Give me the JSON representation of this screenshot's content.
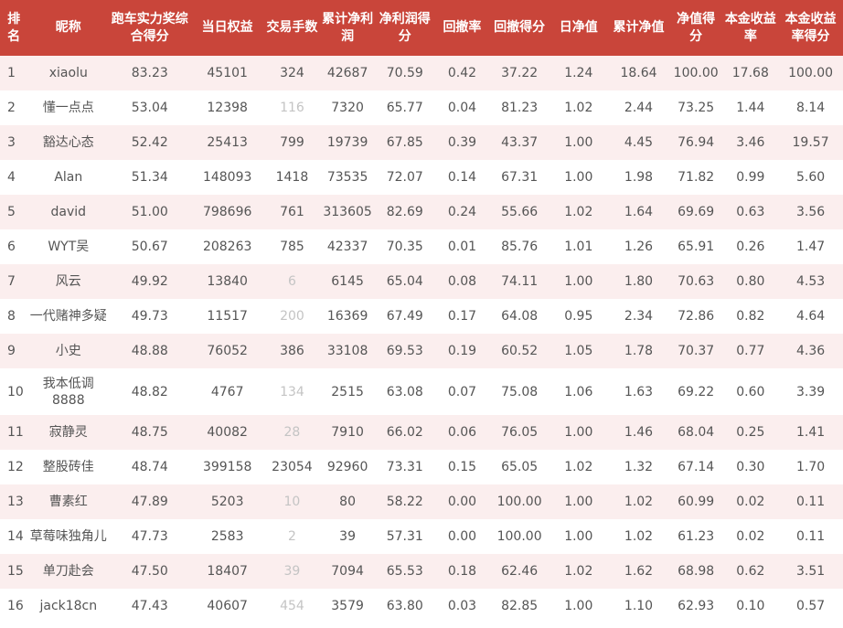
{
  "columns": [
    {
      "key": "rank",
      "label": "排名"
    },
    {
      "key": "nickname",
      "label": "昵称"
    },
    {
      "key": "score",
      "label": "跑车实力奖综合得分"
    },
    {
      "key": "equity",
      "label": "当日权益"
    },
    {
      "key": "trades",
      "label": "交易手数"
    },
    {
      "key": "net_profit",
      "label": "累计净利润"
    },
    {
      "key": "profit_score",
      "label": "净利润得分"
    },
    {
      "key": "drawdown",
      "label": "回撤率"
    },
    {
      "key": "drawdown_score",
      "label": "回撤得分"
    },
    {
      "key": "daily_nav",
      "label": "日净值"
    },
    {
      "key": "cum_nav",
      "label": "累计净值"
    },
    {
      "key": "nav_score",
      "label": "净值得分"
    },
    {
      "key": "return_rate",
      "label": "本金收益率"
    },
    {
      "key": "return_score",
      "label": "本金收益率得分"
    }
  ],
  "rows": [
    {
      "rank": "1",
      "nickname": "xiaolu",
      "score": "83.23",
      "equity": "45101",
      "trades": "324",
      "net_profit": "42687",
      "profit_score": "70.59",
      "drawdown": "0.42",
      "drawdown_score": "37.22",
      "daily_nav": "1.24",
      "cum_nav": "18.64",
      "nav_score": "100.00",
      "return_rate": "17.68",
      "return_score": "100.00",
      "trades_faded": false
    },
    {
      "rank": "2",
      "nickname": "懂一点点",
      "score": "53.04",
      "equity": "12398",
      "trades": "116",
      "net_profit": "7320",
      "profit_score": "65.77",
      "drawdown": "0.04",
      "drawdown_score": "81.23",
      "daily_nav": "1.02",
      "cum_nav": "2.44",
      "nav_score": "73.25",
      "return_rate": "1.44",
      "return_score": "8.14",
      "trades_faded": true
    },
    {
      "rank": "3",
      "nickname": "豁达心态",
      "score": "52.42",
      "equity": "25413",
      "trades": "799",
      "net_profit": "19739",
      "profit_score": "67.85",
      "drawdown": "0.39",
      "drawdown_score": "43.37",
      "daily_nav": "1.00",
      "cum_nav": "4.45",
      "nav_score": "76.94",
      "return_rate": "3.46",
      "return_score": "19.57",
      "trades_faded": false
    },
    {
      "rank": "4",
      "nickname": "Alan",
      "score": "51.34",
      "equity": "148093",
      "trades": "1418",
      "net_profit": "73535",
      "profit_score": "72.07",
      "drawdown": "0.14",
      "drawdown_score": "67.31",
      "daily_nav": "1.00",
      "cum_nav": "1.98",
      "nav_score": "71.82",
      "return_rate": "0.99",
      "return_score": "5.60",
      "trades_faded": false
    },
    {
      "rank": "5",
      "nickname": "david",
      "score": "51.00",
      "equity": "798696",
      "trades": "761",
      "net_profit": "313605",
      "profit_score": "82.69",
      "drawdown": "0.24",
      "drawdown_score": "55.66",
      "daily_nav": "1.02",
      "cum_nav": "1.64",
      "nav_score": "69.69",
      "return_rate": "0.63",
      "return_score": "3.56",
      "trades_faded": false
    },
    {
      "rank": "6",
      "nickname": "WYT吴",
      "score": "50.67",
      "equity": "208263",
      "trades": "785",
      "net_profit": "42337",
      "profit_score": "70.35",
      "drawdown": "0.01",
      "drawdown_score": "85.76",
      "daily_nav": "1.01",
      "cum_nav": "1.26",
      "nav_score": "65.91",
      "return_rate": "0.26",
      "return_score": "1.47",
      "trades_faded": false
    },
    {
      "rank": "7",
      "nickname": "风云",
      "score": "49.92",
      "equity": "13840",
      "trades": "6",
      "net_profit": "6145",
      "profit_score": "65.04",
      "drawdown": "0.08",
      "drawdown_score": "74.11",
      "daily_nav": "1.00",
      "cum_nav": "1.80",
      "nav_score": "70.63",
      "return_rate": "0.80",
      "return_score": "4.53",
      "trades_faded": true
    },
    {
      "rank": "8",
      "nickname": "一代赌神多疑",
      "score": "49.73",
      "equity": "11517",
      "trades": "200",
      "net_profit": "16369",
      "profit_score": "67.49",
      "drawdown": "0.17",
      "drawdown_score": "64.08",
      "daily_nav": "0.95",
      "cum_nav": "2.34",
      "nav_score": "72.86",
      "return_rate": "0.82",
      "return_score": "4.64",
      "trades_faded": true
    },
    {
      "rank": "9",
      "nickname": "小史",
      "score": "48.88",
      "equity": "76052",
      "trades": "386",
      "net_profit": "33108",
      "profit_score": "69.53",
      "drawdown": "0.19",
      "drawdown_score": "60.52",
      "daily_nav": "1.05",
      "cum_nav": "1.78",
      "nav_score": "70.37",
      "return_rate": "0.77",
      "return_score": "4.36",
      "trades_faded": false
    },
    {
      "rank": "10",
      "nickname": "我本低调8888",
      "score": "48.82",
      "equity": "4767",
      "trades": "134",
      "net_profit": "2515",
      "profit_score": "63.08",
      "drawdown": "0.07",
      "drawdown_score": "75.08",
      "daily_nav": "1.06",
      "cum_nav": "1.63",
      "nav_score": "69.22",
      "return_rate": "0.60",
      "return_score": "3.39",
      "trades_faded": true
    },
    {
      "rank": "11",
      "nickname": "寂静灵",
      "score": "48.75",
      "equity": "40082",
      "trades": "28",
      "net_profit": "7910",
      "profit_score": "66.02",
      "drawdown": "0.06",
      "drawdown_score": "76.05",
      "daily_nav": "1.00",
      "cum_nav": "1.46",
      "nav_score": "68.04",
      "return_rate": "0.25",
      "return_score": "1.41",
      "trades_faded": true
    },
    {
      "rank": "12",
      "nickname": "整股砖佳",
      "score": "48.74",
      "equity": "399158",
      "trades": "23054",
      "net_profit": "92960",
      "profit_score": "73.31",
      "drawdown": "0.15",
      "drawdown_score": "65.05",
      "daily_nav": "1.02",
      "cum_nav": "1.32",
      "nav_score": "67.14",
      "return_rate": "0.30",
      "return_score": "1.70",
      "trades_faded": false
    },
    {
      "rank": "13",
      "nickname": "曹素红",
      "score": "47.89",
      "equity": "5203",
      "trades": "10",
      "net_profit": "80",
      "profit_score": "58.22",
      "drawdown": "0.00",
      "drawdown_score": "100.00",
      "daily_nav": "1.00",
      "cum_nav": "1.02",
      "nav_score": "60.99",
      "return_rate": "0.02",
      "return_score": "0.11",
      "trades_faded": true
    },
    {
      "rank": "14",
      "nickname": "草莓味独角儿",
      "score": "47.73",
      "equity": "2583",
      "trades": "2",
      "net_profit": "39",
      "profit_score": "57.31",
      "drawdown": "0.00",
      "drawdown_score": "100.00",
      "daily_nav": "1.00",
      "cum_nav": "1.02",
      "nav_score": "61.23",
      "return_rate": "0.02",
      "return_score": "0.11",
      "trades_faded": true
    },
    {
      "rank": "15",
      "nickname": "单刀赴会",
      "score": "47.50",
      "equity": "18407",
      "trades": "39",
      "net_profit": "7094",
      "profit_score": "65.53",
      "drawdown": "0.18",
      "drawdown_score": "62.46",
      "daily_nav": "1.02",
      "cum_nav": "1.62",
      "nav_score": "68.98",
      "return_rate": "0.62",
      "return_score": "3.51",
      "trades_faded": true
    },
    {
      "rank": "16",
      "nickname": "jack18cn",
      "score": "47.43",
      "equity": "40607",
      "trades": "454",
      "net_profit": "3579",
      "profit_score": "63.80",
      "drawdown": "0.03",
      "drawdown_score": "82.85",
      "daily_nav": "1.00",
      "cum_nav": "1.10",
      "nav_score": "62.93",
      "return_rate": "0.10",
      "return_score": "0.57",
      "trades_faded": true
    }
  ],
  "colors": {
    "header_bg": "#c9453a",
    "header_text": "#ffffff",
    "row_stripe": "#fbeeee",
    "cell_text": "#555555",
    "faded_text": "#c4c4c4"
  }
}
